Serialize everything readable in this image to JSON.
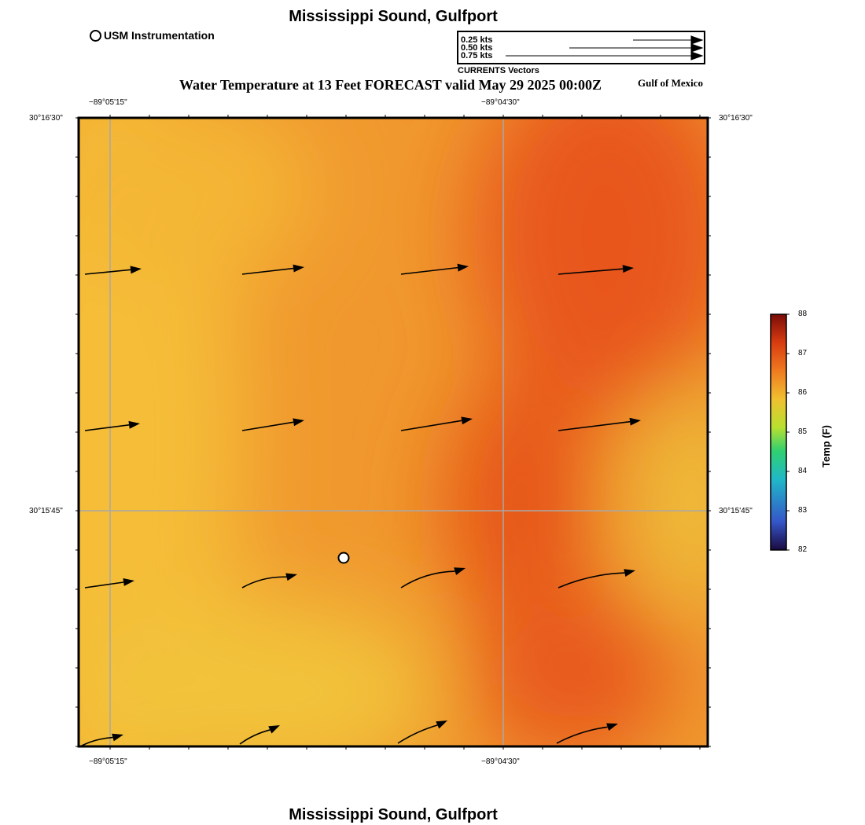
{
  "header": {
    "title": "Mississippi Sound, Gulfport",
    "subtitle": "Water Temperature at 13 Feet FORECAST valid May 29 2025 00:00Z",
    "region_label": "Gulf of Mexico"
  },
  "footer": {
    "title": "Mississippi Sound, Gulfport"
  },
  "legend": {
    "usm_label": "USM Instrumentation",
    "vector_scale": [
      {
        "label": "0.25 kts",
        "speed_kts": 0.25
      },
      {
        "label": "0.50 kts",
        "speed_kts": 0.5
      },
      {
        "label": "0.75 kts",
        "speed_kts": 0.75
      }
    ],
    "vector_caption": "CURRENTS Vectors"
  },
  "axes": {
    "x_ticks": [
      "−89°05'15\"",
      "−89°04'30\""
    ],
    "y_ticks": [
      "30°16'30\"",
      "30°15'45\""
    ]
  },
  "colorbar": {
    "title": "Temp (F)",
    "min": 82,
    "max": 88,
    "ticks": [
      "88",
      "87",
      "86",
      "85",
      "84",
      "83",
      "82"
    ],
    "colors": [
      "#1a0a40",
      "#3556c8",
      "#20b8c8",
      "#30d070",
      "#b8e030",
      "#f0c030",
      "#f07a20",
      "#d83c10",
      "#7a0b08"
    ]
  },
  "map": {
    "icons": {
      "station": "usm-station-icon",
      "vector": "current-vector-arrow"
    },
    "colors": {
      "grid": "#a8a8a8",
      "frame": "#000000",
      "station_fill": "#ffffff"
    }
  }
}
